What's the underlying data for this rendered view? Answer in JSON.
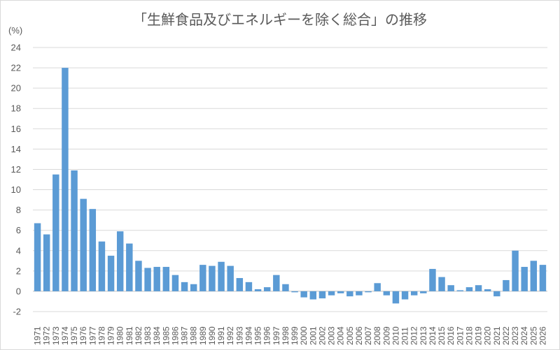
{
  "chart_data": {
    "type": "bar",
    "title": "「生鮮食品及びエネルギーを除く総合」の推移",
    "unit_label": "(%)",
    "ylim": [
      -2,
      24
    ],
    "yticks": [
      -2,
      0,
      2,
      4,
      6,
      8,
      10,
      12,
      14,
      16,
      18,
      20,
      22,
      24
    ],
    "grid": true,
    "bar_color": "#5b9bd5",
    "categories": [
      "1971",
      "1972",
      "1973",
      "1974",
      "1975",
      "1976",
      "1977",
      "1978",
      "1979",
      "1980",
      "1981",
      "1982",
      "1983",
      "1984",
      "1985",
      "1986",
      "1987",
      "1988",
      "1989",
      "1990",
      "1991",
      "1992",
      "1993",
      "1994",
      "1995",
      "1996",
      "1997",
      "1998",
      "1999",
      "2000",
      "2001",
      "2002",
      "2003",
      "2004",
      "2005",
      "2006",
      "2007",
      "2008",
      "2009",
      "2010",
      "2011",
      "2012",
      "2013",
      "2014",
      "2015",
      "2016",
      "2017",
      "2018",
      "2019",
      "2020",
      "2021",
      "2022",
      "2023",
      "2024",
      "2025",
      "2026"
    ],
    "values": [
      6.7,
      5.6,
      11.5,
      22.0,
      11.9,
      9.1,
      8.1,
      4.9,
      3.5,
      5.9,
      4.7,
      3.0,
      2.3,
      2.4,
      2.4,
      1.6,
      0.9,
      0.7,
      2.6,
      2.5,
      2.9,
      2.5,
      1.3,
      0.9,
      0.2,
      0.4,
      1.6,
      0.7,
      -0.1,
      -0.6,
      -0.8,
      -0.7,
      -0.4,
      -0.2,
      -0.5,
      -0.4,
      -0.1,
      0.8,
      -0.4,
      -1.2,
      -0.8,
      -0.4,
      -0.2,
      2.2,
      1.4,
      0.6,
      0.1,
      0.4,
      0.6,
      0.2,
      -0.5,
      1.1,
      4.0,
      2.4,
      3.0,
      2.6
    ]
  }
}
